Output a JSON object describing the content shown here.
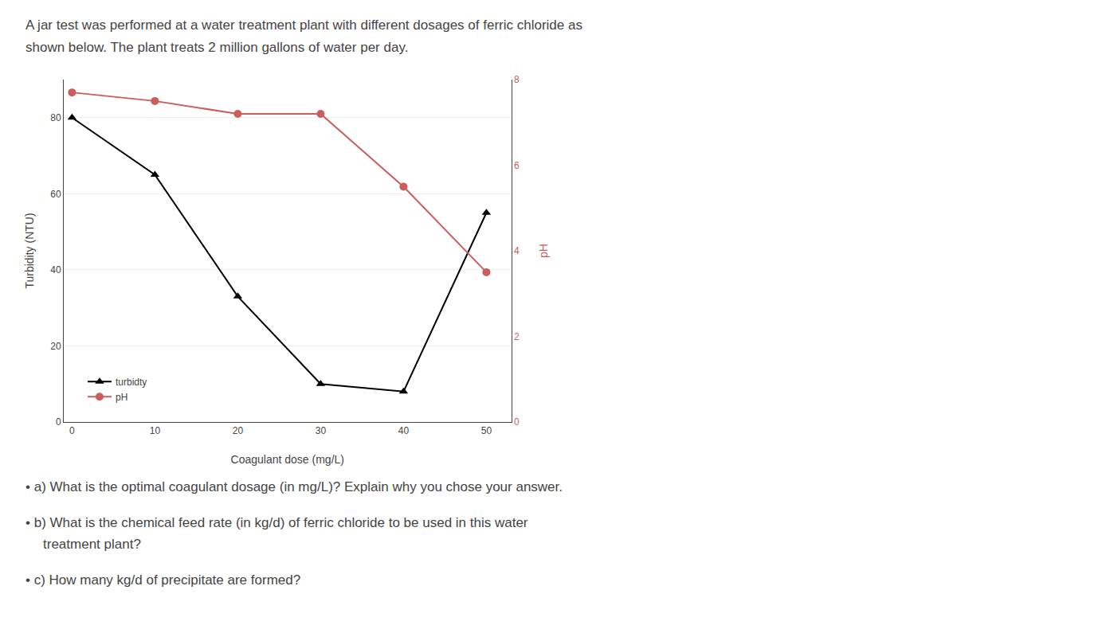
{
  "chart_data": {
    "type": "line",
    "title": "A jar test was performed at a water treatment plant with different dosages of ferric chloride as",
    "subtitle": "shown below. The plant treats 2 million gallons of water per day.",
    "xlabel": "Coagulant dose (mg/L)",
    "ylabel": "Turbidity (NTU)",
    "y2label": "pH",
    "x": [
      0,
      10,
      20,
      30,
      40,
      50
    ],
    "series": [
      {
        "name": "turbidty",
        "color": "#000000",
        "marker": "triangle-up",
        "values": [
          80,
          65,
          33,
          10,
          8,
          55
        ]
      },
      {
        "name": "pH",
        "color": "#cd5c5c",
        "marker": "circle",
        "axis": "y2",
        "values": [
          7.7,
          7.5,
          7.2,
          7.2,
          5.5,
          3.5
        ]
      }
    ],
    "xlim": [
      -1,
      53
    ],
    "xticks": [
      0,
      10,
      20,
      30,
      40,
      50
    ],
    "ylim": [
      0,
      90
    ],
    "yticks": [
      0,
      20,
      40,
      60,
      80
    ],
    "y2lim": [
      0,
      8
    ],
    "y2ticks": [
      0,
      2,
      4,
      6,
      8
    ],
    "grid": true,
    "legend": "lower left",
    "annotations": [
      "• a) What is the optimal coagulant dosage (in mg/L)? Explain why you chose your answer.",
      "• b) What is the chemical feed rate (in kg/d) of ferric chloride to be used in this water",
      "treatment plant?",
      "• c) How many kg/d of precipitate are formed?"
    ]
  }
}
